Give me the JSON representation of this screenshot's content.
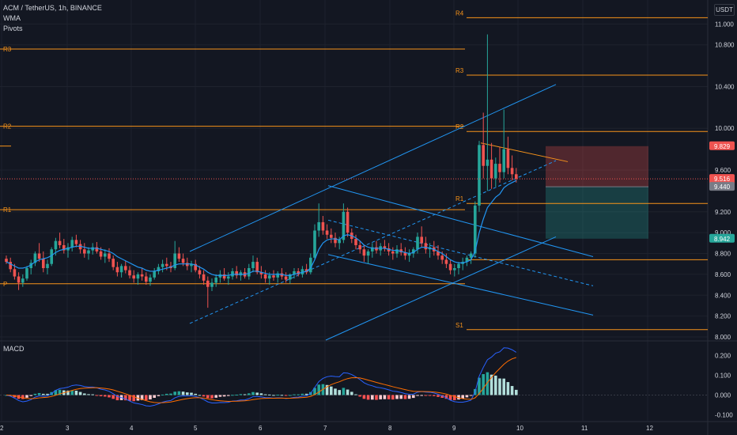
{
  "header": {
    "symbol_line": "ACM / TetherUS, 1h, BINANCE",
    "indicator_1": "WMA",
    "indicator_2": "Pivots",
    "currency_button": "USDT"
  },
  "macd_panel": {
    "label": "MACD"
  },
  "colors": {
    "background": "#131722",
    "grid": "#1e222d",
    "up": "#26a69a",
    "down": "#ef5350",
    "pivot": "#f7931a",
    "channel": "#2196f3",
    "text": "#d1d4dc",
    "macd_line": "#2962ff",
    "signal_line": "#ff6d00"
  },
  "chart_data": [
    {
      "type": "candlestick",
      "title": "ACM / TetherUS, 1h, BINANCE",
      "x_tick_labels": [
        "2",
        "3",
        "4",
        "5",
        "6",
        "7",
        "8",
        "9",
        "10",
        "11",
        "12"
      ],
      "y_tick_labels": [
        "11.000",
        "10.800",
        "10.400",
        "10.000",
        "9.600",
        "9.200",
        "9.000",
        "8.800",
        "8.600",
        "8.400",
        "8.200",
        "8.000"
      ],
      "ylim": [
        7.97,
        11.23
      ],
      "pivot_levels_left": [
        {
          "label": "R3",
          "value": 10.76
        },
        {
          "label": "R2",
          "value": 10.02
        },
        {
          "label": "R1",
          "value": 9.22
        },
        {
          "label": "P",
          "value": 8.51
        }
      ],
      "pivot_levels_right": [
        {
          "label": "R4",
          "value": 11.06
        },
        {
          "label": "R3",
          "value": 10.51
        },
        {
          "label": "R2",
          "value": 9.97
        },
        {
          "label": "R1",
          "value": 9.28
        },
        {
          "label": "S1",
          "value": 8.07
        }
      ],
      "price_tags": [
        {
          "label": "9.829",
          "value": 9.829,
          "color": "#ef5350"
        },
        {
          "label": "9.516",
          "value": 9.516,
          "color": "#ef5350",
          "sub": "52:22"
        },
        {
          "label": "9.440",
          "value": 9.44,
          "color": "#787b86"
        },
        {
          "label": "8.942",
          "value": 8.942,
          "color": "#26a69a"
        }
      ],
      "ohlc": [
        [
          8.75,
          8.78,
          8.7,
          8.72
        ],
        [
          8.72,
          8.76,
          8.62,
          8.65
        ],
        [
          8.65,
          8.7,
          8.55,
          8.58
        ],
        [
          8.58,
          8.62,
          8.45,
          8.52
        ],
        [
          8.52,
          8.6,
          8.48,
          8.56
        ],
        [
          8.56,
          8.68,
          8.54,
          8.66
        ],
        [
          8.66,
          8.74,
          8.6,
          8.71
        ],
        [
          8.71,
          8.82,
          8.68,
          8.8
        ],
        [
          8.8,
          8.9,
          8.72,
          8.75
        ],
        [
          8.75,
          8.82,
          8.62,
          8.66
        ],
        [
          8.66,
          8.74,
          8.6,
          8.7
        ],
        [
          8.7,
          8.86,
          8.68,
          8.84
        ],
        [
          8.84,
          8.95,
          8.78,
          8.92
        ],
        [
          8.92,
          9.0,
          8.85,
          8.88
        ],
        [
          8.88,
          8.94,
          8.8,
          8.83
        ],
        [
          8.83,
          8.9,
          8.76,
          8.86
        ],
        [
          8.86,
          8.96,
          8.82,
          8.93
        ],
        [
          8.93,
          8.98,
          8.86,
          8.89
        ],
        [
          8.89,
          8.93,
          8.8,
          8.84
        ],
        [
          8.84,
          8.9,
          8.76,
          8.8
        ],
        [
          8.8,
          8.86,
          8.74,
          8.83
        ],
        [
          8.83,
          8.9,
          8.79,
          8.86
        ],
        [
          8.86,
          8.91,
          8.8,
          8.82
        ],
        [
          8.82,
          8.86,
          8.74,
          8.77
        ],
        [
          8.77,
          8.84,
          8.71,
          8.8
        ],
        [
          8.8,
          8.85,
          8.72,
          8.75
        ],
        [
          8.75,
          8.78,
          8.64,
          8.67
        ],
        [
          8.67,
          8.72,
          8.58,
          8.62
        ],
        [
          8.62,
          8.7,
          8.57,
          8.68
        ],
        [
          8.68,
          8.73,
          8.61,
          8.64
        ],
        [
          8.64,
          8.68,
          8.56,
          8.59
        ],
        [
          8.59,
          8.64,
          8.52,
          8.56
        ],
        [
          8.56,
          8.62,
          8.5,
          8.6
        ],
        [
          8.6,
          8.66,
          8.54,
          8.58
        ],
        [
          8.58,
          8.62,
          8.5,
          8.53
        ],
        [
          8.53,
          8.6,
          8.49,
          8.57
        ],
        [
          8.57,
          8.66,
          8.55,
          8.63
        ],
        [
          8.63,
          8.7,
          8.6,
          8.67
        ],
        [
          8.67,
          8.74,
          8.62,
          8.7
        ],
        [
          8.7,
          8.76,
          8.64,
          8.68
        ],
        [
          8.68,
          8.72,
          8.62,
          8.66
        ],
        [
          8.66,
          8.92,
          8.64,
          8.8
        ],
        [
          8.8,
          8.86,
          8.72,
          8.75
        ],
        [
          8.75,
          8.8,
          8.68,
          8.71
        ],
        [
          8.71,
          8.76,
          8.64,
          8.68
        ],
        [
          8.68,
          8.73,
          8.62,
          8.7
        ],
        [
          8.7,
          8.74,
          8.62,
          8.64
        ],
        [
          8.64,
          8.68,
          8.56,
          8.6
        ],
        [
          8.6,
          8.64,
          8.5,
          8.54
        ],
        [
          8.54,
          8.58,
          8.28,
          8.48
        ],
        [
          8.48,
          8.56,
          8.44,
          8.52
        ],
        [
          8.52,
          8.6,
          8.48,
          8.57
        ],
        [
          8.57,
          8.64,
          8.52,
          8.6
        ],
        [
          8.6,
          8.66,
          8.54,
          8.56
        ],
        [
          8.56,
          8.62,
          8.5,
          8.58
        ],
        [
          8.58,
          8.66,
          8.55,
          8.63
        ],
        [
          8.63,
          8.68,
          8.56,
          8.59
        ],
        [
          8.59,
          8.64,
          8.54,
          8.62
        ],
        [
          8.62,
          8.66,
          8.56,
          8.58
        ],
        [
          8.58,
          8.7,
          8.55,
          8.66
        ],
        [
          8.66,
          8.78,
          8.62,
          8.72
        ],
        [
          8.72,
          8.76,
          8.6,
          8.62
        ],
        [
          8.62,
          8.68,
          8.56,
          8.6
        ],
        [
          8.6,
          8.64,
          8.52,
          8.56
        ],
        [
          8.56,
          8.62,
          8.5,
          8.59
        ],
        [
          8.59,
          8.64,
          8.54,
          8.57
        ],
        [
          8.57,
          8.63,
          8.52,
          8.61
        ],
        [
          8.61,
          8.66,
          8.55,
          8.58
        ],
        [
          8.58,
          8.62,
          8.52,
          8.55
        ],
        [
          8.55,
          8.61,
          8.51,
          8.6
        ],
        [
          8.6,
          8.66,
          8.56,
          8.63
        ],
        [
          8.63,
          8.66,
          8.58,
          8.6
        ],
        [
          8.6,
          8.68,
          8.57,
          8.65
        ],
        [
          8.65,
          8.7,
          8.6,
          8.62
        ],
        [
          8.62,
          8.8,
          8.6,
          8.76
        ],
        [
          8.76,
          9.08,
          8.74,
          9.02
        ],
        [
          9.02,
          9.28,
          8.96,
          9.1
        ],
        [
          9.1,
          9.16,
          8.98,
          9.02
        ],
        [
          9.02,
          9.08,
          8.94,
          8.98
        ],
        [
          8.98,
          9.04,
          8.9,
          8.95
        ],
        [
          8.95,
          9.0,
          8.86,
          8.9
        ],
        [
          8.9,
          8.96,
          8.84,
          8.93
        ],
        [
          8.93,
          9.28,
          8.9,
          9.2
        ],
        [
          9.2,
          9.24,
          8.96,
          9.0
        ],
        [
          9.0,
          9.04,
          8.9,
          8.94
        ],
        [
          8.94,
          8.98,
          8.84,
          8.88
        ],
        [
          8.88,
          8.92,
          8.8,
          8.84
        ],
        [
          8.84,
          8.88,
          8.72,
          8.78
        ],
        [
          8.78,
          8.84,
          8.7,
          8.82
        ],
        [
          8.82,
          8.9,
          8.76,
          8.86
        ],
        [
          8.86,
          8.92,
          8.8,
          8.83
        ],
        [
          8.83,
          8.9,
          8.78,
          8.87
        ],
        [
          8.87,
          8.93,
          8.82,
          8.85
        ],
        [
          8.85,
          8.9,
          8.78,
          8.82
        ],
        [
          8.82,
          8.86,
          8.74,
          8.8
        ],
        [
          8.8,
          8.88,
          8.76,
          8.84
        ],
        [
          8.84,
          8.9,
          8.78,
          8.81
        ],
        [
          8.81,
          8.86,
          8.74,
          8.78
        ],
        [
          8.78,
          8.84,
          8.72,
          8.8
        ],
        [
          8.8,
          8.86,
          8.76,
          8.84
        ],
        [
          8.84,
          9.0,
          8.8,
          8.96
        ],
        [
          8.96,
          9.06,
          8.86,
          8.9
        ],
        [
          8.9,
          8.96,
          8.8,
          8.84
        ],
        [
          8.84,
          8.9,
          8.76,
          8.86
        ],
        [
          8.86,
          8.92,
          8.78,
          8.82
        ],
        [
          8.82,
          8.88,
          8.74,
          8.78
        ],
        [
          8.78,
          8.82,
          8.7,
          8.74
        ],
        [
          8.74,
          8.8,
          8.66,
          8.7
        ],
        [
          8.7,
          8.74,
          8.6,
          8.64
        ],
        [
          8.64,
          8.7,
          8.58,
          8.66
        ],
        [
          8.66,
          8.72,
          8.6,
          8.7
        ],
        [
          8.7,
          8.76,
          8.64,
          8.72
        ],
        [
          8.72,
          8.78,
          8.68,
          8.76
        ],
        [
          8.76,
          8.82,
          8.7,
          8.8
        ],
        [
          8.8,
          9.3,
          8.76,
          9.26
        ],
        [
          9.26,
          9.88,
          9.2,
          9.84
        ],
        [
          9.84,
          10.15,
          9.52,
          9.64
        ],
        [
          9.64,
          10.9,
          9.4,
          9.7
        ],
        [
          9.7,
          9.86,
          9.42,
          9.52
        ],
        [
          9.52,
          9.72,
          9.44,
          9.66
        ],
        [
          9.66,
          9.82,
          9.48,
          9.58
        ],
        [
          9.58,
          10.18,
          9.52,
          9.8
        ],
        [
          9.8,
          9.92,
          9.56,
          9.62
        ],
        [
          9.62,
          9.74,
          9.5,
          9.56
        ],
        [
          9.56,
          9.62,
          9.48,
          9.516
        ]
      ],
      "wma": [
        8.72,
        8.7,
        8.68,
        8.66,
        8.66,
        8.67,
        8.69,
        8.72,
        8.74,
        8.75,
        8.76,
        8.78,
        8.81,
        8.83,
        8.84,
        8.85,
        8.86,
        8.87,
        8.87,
        8.86,
        8.85,
        8.85,
        8.85,
        8.84,
        8.83,
        8.82,
        8.8,
        8.77,
        8.75,
        8.73,
        8.71,
        8.69,
        8.67,
        8.66,
        8.64,
        8.63,
        8.63,
        8.64,
        8.65,
        8.66,
        8.67,
        8.69,
        8.7,
        8.7,
        8.7,
        8.7,
        8.69,
        8.67,
        8.65,
        8.62,
        8.6,
        8.59,
        8.59,
        8.59,
        8.59,
        8.6,
        8.6,
        8.6,
        8.6,
        8.61,
        8.63,
        8.63,
        8.62,
        8.61,
        8.6,
        8.6,
        8.6,
        8.6,
        8.59,
        8.59,
        8.6,
        8.61,
        8.62,
        8.63,
        8.66,
        8.74,
        8.84,
        8.9,
        8.93,
        8.94,
        8.94,
        8.93,
        8.97,
        8.98,
        8.97,
        8.95,
        8.92,
        8.88,
        8.86,
        8.85,
        8.85,
        8.85,
        8.85,
        8.84,
        8.83,
        8.83,
        8.82,
        8.81,
        8.8,
        8.81,
        8.84,
        8.86,
        8.86,
        8.85,
        8.84,
        8.82,
        8.8,
        8.77,
        8.74,
        8.72,
        8.71,
        8.71,
        8.72,
        8.74,
        8.82,
        9.0,
        9.13,
        9.24,
        9.29,
        9.34,
        9.37,
        9.43,
        9.46,
        9.48,
        9.5
      ]
    },
    {
      "type": "macd",
      "title": "MACD",
      "y_tick_labels": [
        "0.200",
        "0.100",
        "0.000",
        "-0.100"
      ],
      "ylim": [
        -0.13,
        0.27
      ]
    }
  ]
}
